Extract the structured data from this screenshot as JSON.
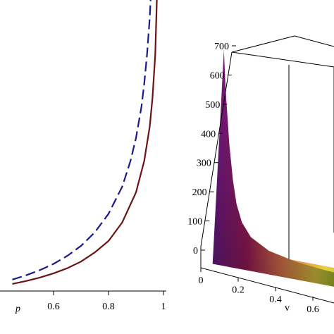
{
  "chart_data": [
    {
      "type": "line",
      "xlabel": "p",
      "ylabel": "",
      "xlim": [
        0.4,
        1.0
      ],
      "x_ticks": [
        "0.6",
        "0.8",
        "1"
      ],
      "grid": false,
      "series": [
        {
          "style": "dashed",
          "color": "#1a1a8c",
          "points": [
            [
              0.45,
              0.035
            ],
            [
              0.5,
              0.05
            ],
            [
              0.55,
              0.068
            ],
            [
              0.6,
              0.09
            ],
            [
              0.65,
              0.118
            ],
            [
              0.7,
              0.153
            ],
            [
              0.75,
              0.2
            ],
            [
              0.8,
              0.265
            ],
            [
              0.85,
              0.36
            ],
            [
              0.88,
              0.45
            ],
            [
              0.9,
              0.53
            ],
            [
              0.92,
              0.64
            ],
            [
              0.93,
              0.72
            ],
            [
              0.94,
              0.82
            ],
            [
              0.95,
              0.95
            ],
            [
              0.96,
              1.15
            ]
          ]
        },
        {
          "style": "solid",
          "color": "#6b1414",
          "points": [
            [
              0.45,
              0.02
            ],
            [
              0.5,
              0.03
            ],
            [
              0.55,
              0.042
            ],
            [
              0.6,
              0.057
            ],
            [
              0.65,
              0.075
            ],
            [
              0.7,
              0.098
            ],
            [
              0.75,
              0.13
            ],
            [
              0.8,
              0.17
            ],
            [
              0.85,
              0.235
            ],
            [
              0.9,
              0.34
            ],
            [
              0.93,
              0.45
            ],
            [
              0.95,
              0.57
            ],
            [
              0.96,
              0.67
            ],
            [
              0.97,
              0.82
            ],
            [
              0.98,
              1.15
            ]
          ]
        }
      ]
    },
    {
      "type": "surface",
      "xlabel": "v",
      "zlim": [
        0,
        700
      ],
      "z_ticks": [
        "0",
        "100",
        "200",
        "300",
        "400",
        "500",
        "600",
        "700"
      ],
      "x_ticks": [
        "0",
        "0.2",
        "0.4",
        "0.6"
      ],
      "colormap": [
        "#6a1a8a",
        "#a01a5a",
        "#e87a50",
        "#e8d040",
        "#80c020"
      ],
      "profile": [
        [
          0.05,
          700
        ],
        [
          0.06,
          560
        ],
        [
          0.08,
          380
        ],
        [
          0.1,
          260
        ],
        [
          0.12,
          180
        ],
        [
          0.15,
          120
        ],
        [
          0.2,
          75
        ],
        [
          0.3,
          40
        ],
        [
          0.45,
          20
        ],
        [
          0.6,
          10
        ],
        [
          0.75,
          5
        ]
      ]
    }
  ]
}
